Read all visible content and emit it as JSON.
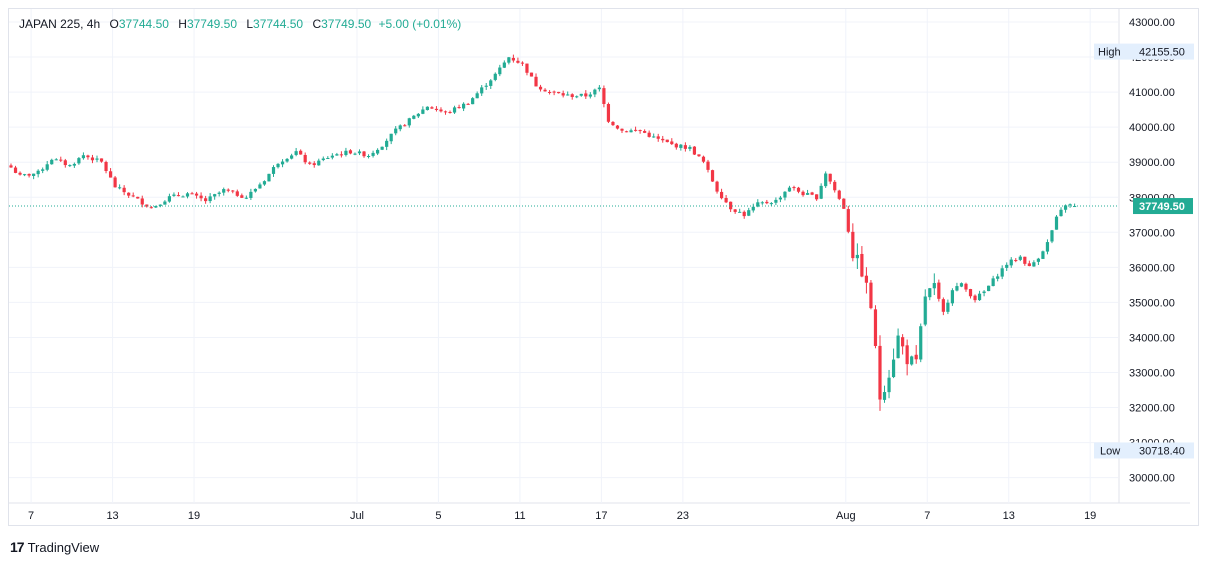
{
  "header": {
    "symbol": "JAPAN 225, 4h",
    "o_label": "O",
    "o_value": "37744.50",
    "h_label": "H",
    "h_value": "37749.50",
    "l_label": "L",
    "l_value": "37744.50",
    "c_label": "C",
    "c_value": "37749.50",
    "change": "+5.00 (+0.01%)"
  },
  "footer": {
    "brand_mark": "17",
    "brand_name": "TradingView"
  },
  "colors": {
    "up": "#22ab94",
    "down": "#f23645",
    "grid": "#f0f3fa",
    "tag_bg": "#e3effd",
    "price_tag": "#22ab94"
  },
  "chart_data": {
    "type": "candlestick",
    "ylim": [
      29700,
      43300
    ],
    "y_ticks": [
      30000,
      31000,
      32000,
      33000,
      34000,
      35000,
      36000,
      37000,
      38000,
      39000,
      40000,
      41000,
      42000,
      43000
    ],
    "y_tick_labels": [
      "30000.00",
      "31000.00",
      "32000.00",
      "33000.00",
      "34000.00",
      "35000.00",
      "36000.00",
      "37000.00",
      "38000.00",
      "39000.00",
      "40000.00",
      "41000.00",
      "42000.00",
      "43000.00"
    ],
    "x_ticks": [
      {
        "label": "7",
        "bar": 4
      },
      {
        "label": "13",
        "bar": 22
      },
      {
        "label": "19",
        "bar": 40
      },
      {
        "label": "Jul",
        "bar": 76
      },
      {
        "label": "5",
        "bar": 94
      },
      {
        "label": "11",
        "bar": 112
      },
      {
        "label": "17",
        "bar": 130
      },
      {
        "label": "23",
        "bar": 148
      },
      {
        "label": "Aug",
        "bar": 184
      },
      {
        "label": "7",
        "bar": 202
      },
      {
        "label": "13",
        "bar": 220
      },
      {
        "label": "19",
        "bar": 238
      }
    ],
    "high_marker": {
      "label": "High",
      "value": "42155.50",
      "price": 42155.5
    },
    "low_marker": {
      "label": "Low",
      "value": "30718.40",
      "price": 30718.4
    },
    "last_price": {
      "label": "37749.50",
      "price": 37749.5
    },
    "close_keypoints": [
      [
        0,
        38850
      ],
      [
        2,
        38600
      ],
      [
        6,
        38700
      ],
      [
        9,
        39100
      ],
      [
        13,
        38900
      ],
      [
        16,
        39200
      ],
      [
        20,
        39000
      ],
      [
        23,
        38300
      ],
      [
        27,
        38000
      ],
      [
        31,
        37700
      ],
      [
        35,
        38000
      ],
      [
        39,
        38100
      ],
      [
        43,
        37900
      ],
      [
        47,
        38200
      ],
      [
        52,
        38000
      ],
      [
        56,
        38500
      ],
      [
        59,
        39000
      ],
      [
        63,
        39300
      ],
      [
        66,
        38900
      ],
      [
        71,
        39200
      ],
      [
        75,
        39300
      ],
      [
        79,
        39200
      ],
      [
        82,
        39500
      ],
      [
        85,
        39900
      ],
      [
        89,
        40300
      ],
      [
        92,
        40600
      ],
      [
        96,
        40400
      ],
      [
        101,
        40700
      ],
      [
        104,
        41100
      ],
      [
        107,
        41500
      ],
      [
        110,
        42000
      ],
      [
        113,
        41800
      ],
      [
        116,
        41200
      ],
      [
        119,
        41000
      ],
      [
        123,
        40900
      ],
      [
        127,
        40900
      ],
      [
        130,
        41100
      ],
      [
        132,
        40200
      ],
      [
        135,
        39900
      ],
      [
        139,
        39900
      ],
      [
        142,
        39700
      ],
      [
        146,
        39500
      ],
      [
        150,
        39400
      ],
      [
        153,
        39000
      ],
      [
        156,
        38200
      ],
      [
        159,
        37700
      ],
      [
        162,
        37500
      ],
      [
        165,
        37800
      ],
      [
        169,
        37900
      ],
      [
        172,
        38300
      ],
      [
        175,
        38100
      ],
      [
        178,
        38000
      ],
      [
        180,
        38700
      ],
      [
        182,
        38200
      ],
      [
        184,
        37700
      ],
      [
        186,
        36400
      ],
      [
        188,
        35900
      ],
      [
        190,
        34900
      ],
      [
        192,
        32300
      ],
      [
        194,
        33000
      ],
      [
        196,
        34000
      ],
      [
        198,
        33400
      ],
      [
        200,
        33200
      ],
      [
        202,
        35200
      ],
      [
        204,
        35400
      ],
      [
        206,
        34700
      ],
      [
        208,
        35400
      ],
      [
        210,
        35500
      ],
      [
        213,
        35100
      ],
      [
        215,
        35300
      ],
      [
        218,
        35800
      ],
      [
        220,
        36100
      ],
      [
        223,
        36300
      ],
      [
        225,
        36000
      ],
      [
        227,
        36300
      ],
      [
        229,
        36700
      ],
      [
        231,
        37400
      ],
      [
        233,
        37800
      ],
      [
        235,
        37749.5
      ]
    ]
  }
}
